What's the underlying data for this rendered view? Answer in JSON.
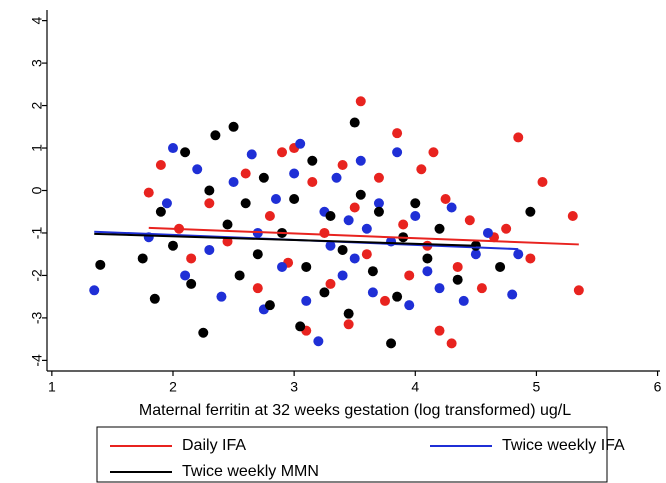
{
  "chart_data": {
    "type": "scatter",
    "xlabel": "Maternal ferritin at 32 weeks gestation (log transformed) ug/L",
    "xlim": [
      0.96,
      6.02
    ],
    "ylim": [
      -4.25,
      4.25
    ],
    "xticks": [
      1,
      2,
      3,
      4,
      5,
      6
    ],
    "yticks": [
      -4,
      -3,
      -2,
      -1,
      0,
      1,
      2,
      3,
      4
    ],
    "series": [
      {
        "name": "Daily IFA",
        "color": "#e8231f",
        "x": [
          1.8,
          1.9,
          2.05,
          2.15,
          2.3,
          2.45,
          2.6,
          2.7,
          2.8,
          2.9,
          2.95,
          3.0,
          3.1,
          3.15,
          3.25,
          3.3,
          3.4,
          3.45,
          3.5,
          3.55,
          3.6,
          3.7,
          3.75,
          3.85,
          3.9,
          3.95,
          4.05,
          4.1,
          4.15,
          4.2,
          4.25,
          4.3,
          4.35,
          4.45,
          4.55,
          4.65,
          4.75,
          4.85,
          5.05,
          5.3,
          5.35,
          4.95
        ],
        "values": [
          -0.05,
          0.6,
          -0.9,
          -1.6,
          -0.3,
          -1.2,
          0.4,
          -2.3,
          -0.6,
          0.9,
          -1.7,
          1.0,
          -3.3,
          0.2,
          -1.0,
          -2.2,
          0.6,
          -3.15,
          -0.4,
          2.1,
          -1.5,
          0.3,
          -2.6,
          1.35,
          -0.8,
          -2.0,
          0.5,
          -1.3,
          0.9,
          -3.3,
          -0.2,
          -3.6,
          -1.8,
          -0.7,
          -2.3,
          -1.1,
          -0.9,
          1.25,
          0.2,
          -0.6,
          -2.35,
          -1.6
        ],
        "fit_x": [
          1.8,
          5.35
        ],
        "fit_y": [
          -0.88,
          -1.27
        ]
      },
      {
        "name": "Twice weekly IFA",
        "color": "#1f2fd6",
        "x": [
          1.35,
          1.8,
          1.95,
          2.0,
          2.1,
          2.2,
          2.3,
          2.4,
          2.5,
          2.65,
          2.7,
          2.75,
          2.85,
          2.9,
          3.0,
          3.05,
          3.1,
          3.2,
          3.25,
          3.3,
          3.4,
          3.45,
          3.5,
          3.55,
          3.6,
          3.65,
          3.7,
          3.8,
          3.85,
          3.95,
          4.0,
          4.1,
          4.2,
          4.3,
          4.4,
          4.5,
          4.6,
          4.8,
          4.85,
          3.35
        ],
        "values": [
          -2.35,
          -1.1,
          -0.3,
          1.0,
          -2.0,
          0.5,
          -1.4,
          -2.5,
          0.2,
          0.85,
          -1.0,
          -2.8,
          -0.2,
          -1.8,
          0.4,
          1.1,
          -2.6,
          -3.55,
          -0.5,
          -1.3,
          -2.0,
          -0.7,
          -1.6,
          0.7,
          -0.9,
          -2.4,
          -0.3,
          -1.2,
          0.9,
          -2.7,
          -0.6,
          -1.9,
          -2.3,
          -0.4,
          -2.6,
          -1.5,
          -1.0,
          -2.45,
          -1.5,
          0.3
        ],
        "fit_x": [
          1.35,
          4.85
        ],
        "fit_y": [
          -0.97,
          -1.38
        ]
      },
      {
        "name": "Twice weekly MMN",
        "color": "#000000",
        "x": [
          1.4,
          1.75,
          1.85,
          1.9,
          2.0,
          2.1,
          2.15,
          2.25,
          2.3,
          2.35,
          2.45,
          2.5,
          2.55,
          2.6,
          2.7,
          2.75,
          2.8,
          2.9,
          3.0,
          3.05,
          3.1,
          3.15,
          3.25,
          3.3,
          3.4,
          3.45,
          3.5,
          3.55,
          3.65,
          3.7,
          3.8,
          3.85,
          3.9,
          4.0,
          4.1,
          4.2,
          4.35,
          4.5,
          4.7,
          4.95
        ],
        "values": [
          -1.75,
          -1.6,
          -2.55,
          -0.5,
          -1.3,
          0.9,
          -2.2,
          -3.35,
          0.0,
          1.3,
          -0.8,
          1.5,
          -2.0,
          -0.3,
          -1.5,
          0.3,
          -2.7,
          -1.0,
          -0.2,
          -3.2,
          -1.8,
          0.7,
          -2.4,
          -0.6,
          -1.4,
          -2.9,
          1.6,
          -0.1,
          -1.9,
          -0.5,
          -3.6,
          -2.5,
          -1.1,
          -0.3,
          -1.6,
          -0.9,
          -2.1,
          -1.3,
          -1.8,
          -0.5
        ],
        "fit_x": [
          1.35,
          4.5
        ],
        "fit_y": [
          -1.02,
          -1.3
        ]
      }
    ]
  }
}
